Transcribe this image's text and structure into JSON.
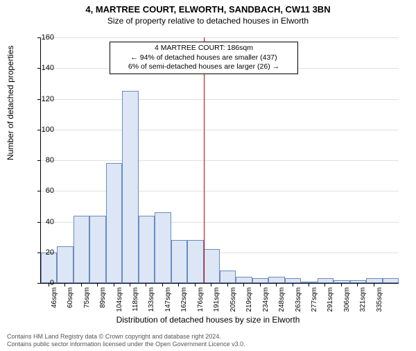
{
  "title": "4, MARTREE COURT, ELWORTH, SANDBACH, CW11 3BN",
  "subtitle": "Size of property relative to detached houses in Elworth",
  "ylabel": "Number of detached properties",
  "xlabel": "Distribution of detached houses by size in Elworth",
  "chart": {
    "type": "histogram",
    "ylim": [
      0,
      160
    ],
    "ytick_step": 20,
    "background_color": "#ffffff",
    "bar_fill": "#dce6f4",
    "bar_stroke": "#6a8bbf",
    "grid_color": "#e0e0e0",
    "refline_color": "#cc0000",
    "refline_x_index": 10,
    "xticks": [
      "46sqm",
      "60sqm",
      "75sqm",
      "89sqm",
      "104sqm",
      "118sqm",
      "133sqm",
      "147sqm",
      "162sqm",
      "176sqm",
      "191sqm",
      "205sqm",
      "219sqm",
      "234sqm",
      "248sqm",
      "263sqm",
      "277sqm",
      "291sqm",
      "306sqm",
      "321sqm",
      "335sqm"
    ],
    "values": [
      20,
      24,
      44,
      44,
      78,
      125,
      44,
      46,
      28,
      28,
      22,
      8,
      4,
      3,
      4,
      3,
      1,
      3,
      2,
      2,
      3,
      3
    ]
  },
  "annotation": {
    "line1": "4 MARTREE COURT: 186sqm",
    "line2": "← 94% of detached houses are smaller (437)",
    "line3": "6% of semi-detached houses are larger (26) →",
    "border_color": "#000000",
    "fontsize": 10.5
  },
  "attribution": {
    "line1": "Contains HM Land Registry data © Crown copyright and database right 2024.",
    "line2": "Contains public sector information licensed under the Open Government Licence v3.0."
  }
}
